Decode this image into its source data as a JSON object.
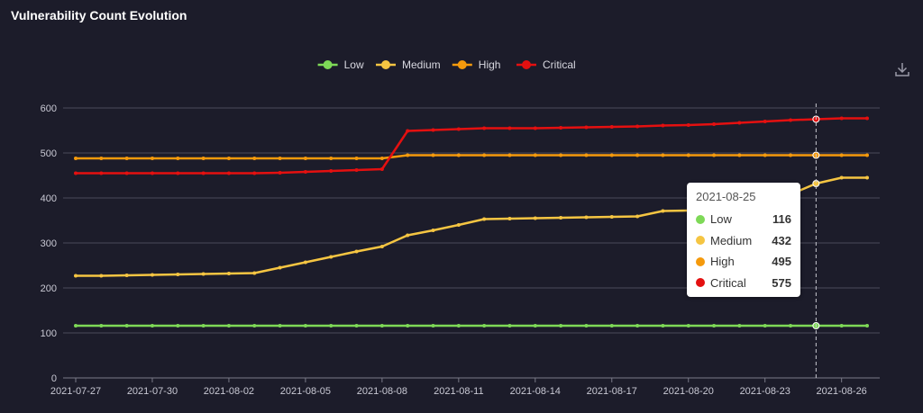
{
  "header": {
    "title": "Vulnerability Count Evolution"
  },
  "toolbar": {
    "download_icon": "download-icon"
  },
  "chart_data": {
    "type": "line",
    "title": "Vulnerability Count Evolution",
    "xlabel": "",
    "ylabel": "",
    "ylim": [
      0,
      600
    ],
    "yticks": [
      "0",
      "100",
      "200",
      "300",
      "400",
      "500",
      "600"
    ],
    "x": [
      "2021-07-27",
      "2021-07-28",
      "2021-07-29",
      "2021-07-30",
      "2021-07-31",
      "2021-08-01",
      "2021-08-02",
      "2021-08-03",
      "2021-08-04",
      "2021-08-05",
      "2021-08-06",
      "2021-08-07",
      "2021-08-08",
      "2021-08-09",
      "2021-08-10",
      "2021-08-11",
      "2021-08-12",
      "2021-08-13",
      "2021-08-14",
      "2021-08-15",
      "2021-08-16",
      "2021-08-17",
      "2021-08-18",
      "2021-08-19",
      "2021-08-20",
      "2021-08-21",
      "2021-08-22",
      "2021-08-23",
      "2021-08-24",
      "2021-08-25",
      "2021-08-26",
      "2021-08-27"
    ],
    "xticks": [
      "2021-07-27",
      "2021-07-30",
      "2021-08-02",
      "2021-08-05",
      "2021-08-08",
      "2021-08-11",
      "2021-08-14",
      "2021-08-17",
      "2021-08-20",
      "2021-08-23",
      "2021-08-26"
    ],
    "grid": true,
    "legend_position": "top-center",
    "series": [
      {
        "name": "Low",
        "color": "#7ed957",
        "values": [
          116,
          116,
          116,
          116,
          116,
          116,
          116,
          116,
          116,
          116,
          116,
          116,
          116,
          116,
          116,
          116,
          116,
          116,
          116,
          116,
          116,
          116,
          116,
          116,
          116,
          116,
          116,
          116,
          116,
          116,
          116,
          116
        ]
      },
      {
        "name": "Medium",
        "color": "#f5c542",
        "values": [
          227,
          227,
          228,
          229,
          230,
          231,
          232,
          233,
          245,
          257,
          269,
          281,
          292,
          317,
          328,
          340,
          353,
          354,
          355,
          356,
          357,
          358,
          359,
          371,
          372,
          381,
          390,
          399,
          408,
          432,
          445,
          445
        ]
      },
      {
        "name": "High",
        "color": "#f59a0c",
        "values": [
          488,
          488,
          488,
          488,
          488,
          488,
          488,
          488,
          488,
          488,
          488,
          488,
          488,
          495,
          495,
          495,
          495,
          495,
          495,
          495,
          495,
          495,
          495,
          495,
          495,
          495,
          495,
          495,
          495,
          495,
          495,
          495
        ]
      },
      {
        "name": "Critical",
        "color": "#e41010",
        "values": [
          455,
          455,
          455,
          455,
          455,
          455,
          455,
          455,
          456,
          458,
          460,
          462,
          464,
          549,
          551,
          553,
          555,
          555,
          555,
          556,
          557,
          558,
          559,
          561,
          562,
          564,
          567,
          570,
          573,
          575,
          577,
          577
        ]
      }
    ]
  },
  "tooltip": {
    "date": "2021-08-25",
    "rows": [
      {
        "name": "Low",
        "value": "116",
        "color": "#7ed957"
      },
      {
        "name": "Medium",
        "value": "432",
        "color": "#f5c542"
      },
      {
        "name": "High",
        "value": "495",
        "color": "#f59a0c"
      },
      {
        "name": "Critical",
        "value": "575",
        "color": "#e41010"
      }
    ]
  }
}
